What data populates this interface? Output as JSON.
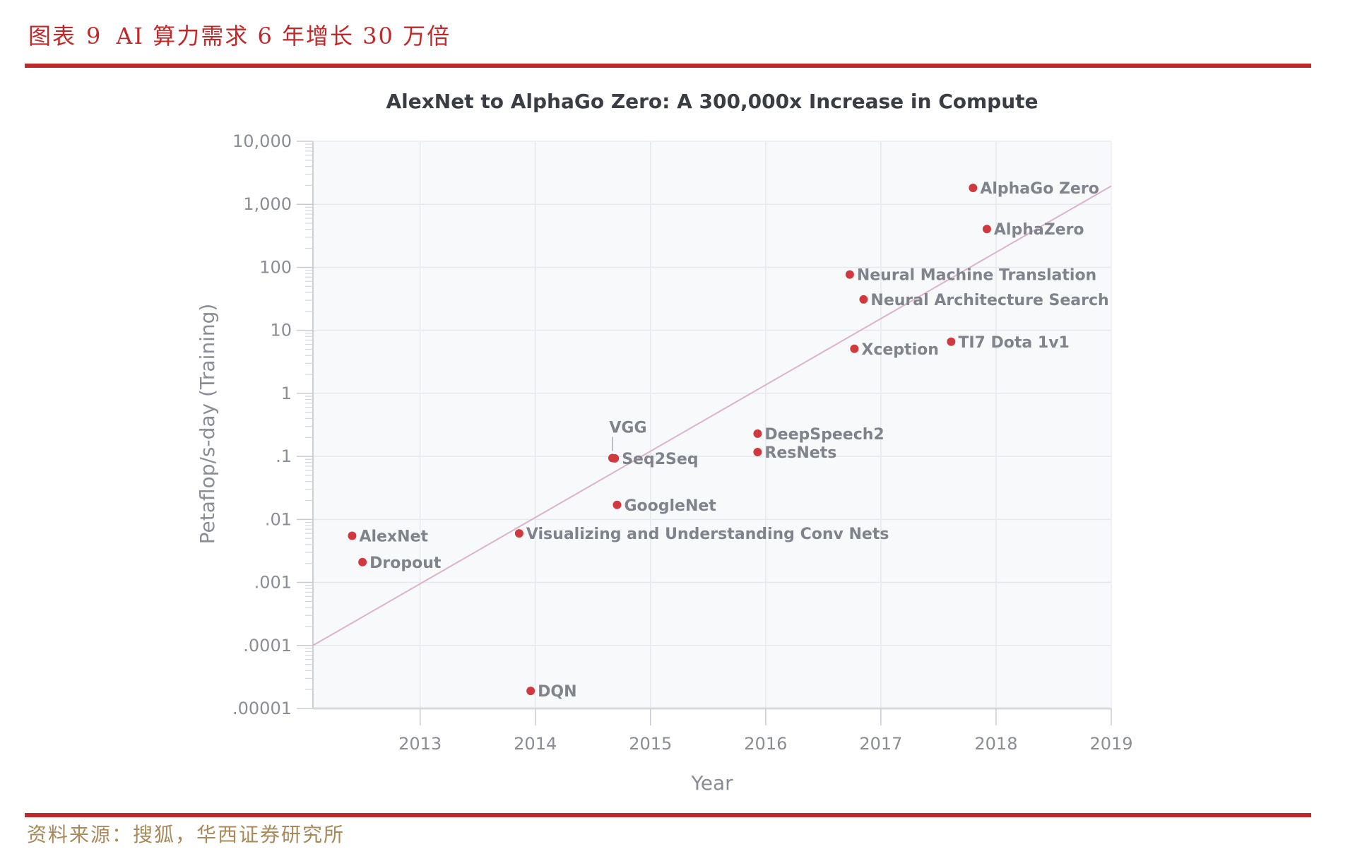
{
  "header": {
    "figure_label": "图表",
    "figure_number": "9",
    "title": "AI 算力需求 6 年增长 30 万倍"
  },
  "footer": {
    "source": "资料来源：搜狐，华西证券研究所"
  },
  "colors": {
    "accent": "#c0292a",
    "source_text": "#a8895a",
    "point": "#d2393f",
    "trend": "#dcb2cc",
    "plot_bg": "#f7f9fb",
    "grid": "#e6e9ee"
  },
  "chart_data": {
    "type": "scatter",
    "title": "AlexNet to AlphaGo Zero: A 300,000x Increase in Compute",
    "xlabel": "Year",
    "ylabel": "Petaflop/s-day (Training)",
    "xlim": [
      2012.07,
      2019
    ],
    "ylim": [
      1e-05,
      10000
    ],
    "yscale": "log",
    "grid": true,
    "xticks": [
      {
        "value": 2013,
        "label": "2013"
      },
      {
        "value": 2014,
        "label": "2014"
      },
      {
        "value": 2015,
        "label": "2015"
      },
      {
        "value": 2016,
        "label": "2016"
      },
      {
        "value": 2017,
        "label": "2017"
      },
      {
        "value": 2018,
        "label": "2018"
      },
      {
        "value": 2019,
        "label": "2019"
      }
    ],
    "yticks": [
      {
        "value": 10000,
        "label": "10,000"
      },
      {
        "value": 1000,
        "label": "1,000"
      },
      {
        "value": 100,
        "label": "100"
      },
      {
        "value": 10,
        "label": "10"
      },
      {
        "value": 1,
        "label": "1"
      },
      {
        "value": 0.1,
        "label": ".1"
      },
      {
        "value": 0.01,
        "label": ".01"
      },
      {
        "value": 0.001,
        "label": ".001"
      },
      {
        "value": 0.0001,
        "label": ".0001"
      },
      {
        "value": 1e-05,
        "label": ".00001"
      }
    ],
    "trend_line": {
      "x": [
        2012.07,
        2019
      ],
      "y": [
        0.0001,
        1950
      ]
    },
    "points": [
      {
        "name": "AlexNet",
        "x": 2012.41,
        "y": 0.0055
      },
      {
        "name": "Dropout",
        "x": 2012.5,
        "y": 0.0021
      },
      {
        "name": "Visualizing and Understanding Conv Nets",
        "x": 2013.86,
        "y": 0.006
      },
      {
        "name": "DQN",
        "x": 2013.96,
        "y": 1.9e-05
      },
      {
        "name": "VGG",
        "x": 2014.67,
        "y": 0.094,
        "label_position": "above"
      },
      {
        "name": "Seq2Seq",
        "x": 2014.69,
        "y": 0.093
      },
      {
        "name": "GoogleNet",
        "x": 2014.71,
        "y": 0.017
      },
      {
        "name": "DeepSpeech2",
        "x": 2015.93,
        "y": 0.23
      },
      {
        "name": "ResNets",
        "x": 2015.93,
        "y": 0.117
      },
      {
        "name": "Neural Machine Translation",
        "x": 2016.73,
        "y": 77
      },
      {
        "name": "Neural Architecture Search",
        "x": 2016.85,
        "y": 31
      },
      {
        "name": "Xception",
        "x": 2016.77,
        "y": 5.1
      },
      {
        "name": "TI7 Dota 1v1",
        "x": 2017.61,
        "y": 6.6
      },
      {
        "name": "AlphaGo Zero",
        "x": 2017.8,
        "y": 1820
      },
      {
        "name": "AlphaZero",
        "x": 2017.92,
        "y": 405
      }
    ]
  }
}
